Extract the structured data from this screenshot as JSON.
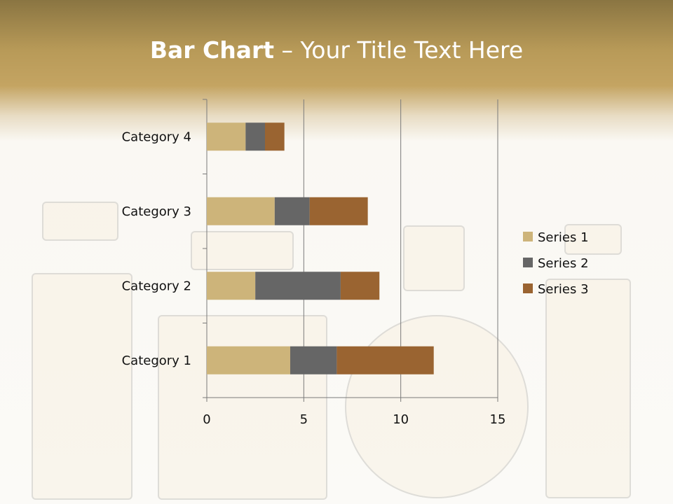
{
  "title": {
    "bold": "Bar Chart",
    "rest": " – Your Title Text Here"
  },
  "chart_data": {
    "type": "bar",
    "orientation": "horizontal",
    "stacked": true,
    "categories": [
      "Category 1",
      "Category 2",
      "Category 3",
      "Category 4"
    ],
    "series": [
      {
        "name": "Series 1",
        "values": [
          4.3,
          2.5,
          3.5,
          2.0
        ],
        "color": "#CDB47A"
      },
      {
        "name": "Series 2",
        "values": [
          2.4,
          4.4,
          1.8,
          1.0
        ],
        "color": "#666666"
      },
      {
        "name": "Series 3",
        "values": [
          5.0,
          2.0,
          3.0,
          1.0
        ],
        "color": "#9A6431"
      }
    ],
    "xlim": [
      0,
      15
    ],
    "xticks": [
      0,
      5,
      10,
      15
    ],
    "grid": "vertical",
    "legend": "right"
  }
}
